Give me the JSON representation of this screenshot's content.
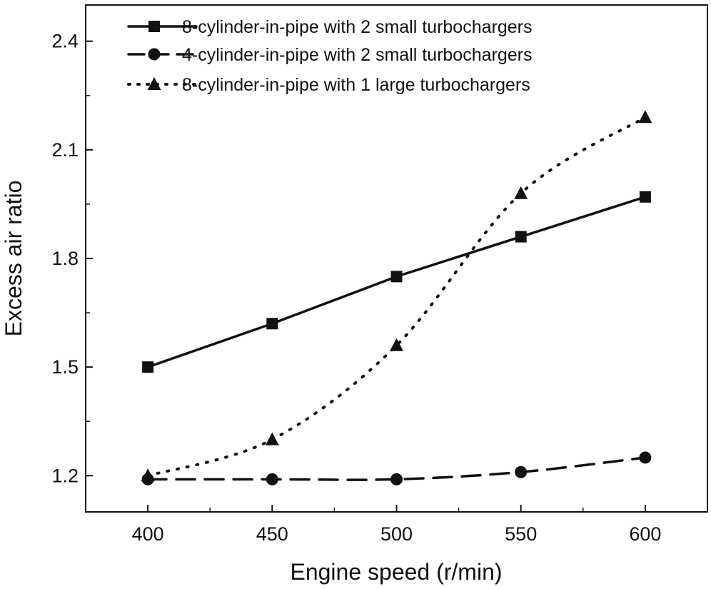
{
  "chart_data": {
    "type": "line",
    "title": "",
    "xlabel": "Engine speed (r/min)",
    "ylabel": "Excess air ratio",
    "x": [
      400,
      450,
      500,
      550,
      600
    ],
    "xlim": [
      375,
      625
    ],
    "ylim": [
      1.1,
      2.5
    ],
    "x_ticks": [
      400,
      450,
      500,
      550,
      600
    ],
    "y_ticks": [
      1.2,
      1.5,
      1.8,
      2.1,
      2.4
    ],
    "x_tick_labels": [
      "400",
      "450",
      "500",
      "550",
      "600"
    ],
    "y_tick_labels": [
      "1.2",
      "1.5",
      "1.8",
      "2.1",
      "2.4"
    ],
    "grid": false,
    "legend_position": "top",
    "series": [
      {
        "name": "8-cylinder-in-pipe with 2 small turbochargers",
        "values": [
          1.5,
          1.62,
          1.75,
          1.86,
          1.97
        ],
        "marker": "square",
        "line_style": "solid",
        "color": "#111111"
      },
      {
        "name": "4-cylinder-in-pipe with 2 small turbochargers",
        "values": [
          1.19,
          1.19,
          1.19,
          1.21,
          1.25
        ],
        "marker": "circle",
        "line_style": "dashed",
        "color": "#111111"
      },
      {
        "name": "8-cylinder-in-pipe with 1 large turbochargers",
        "values": [
          1.2,
          1.3,
          1.56,
          1.98,
          2.19
        ],
        "marker": "triangle",
        "line_style": "dotted",
        "color": "#111111"
      }
    ]
  }
}
